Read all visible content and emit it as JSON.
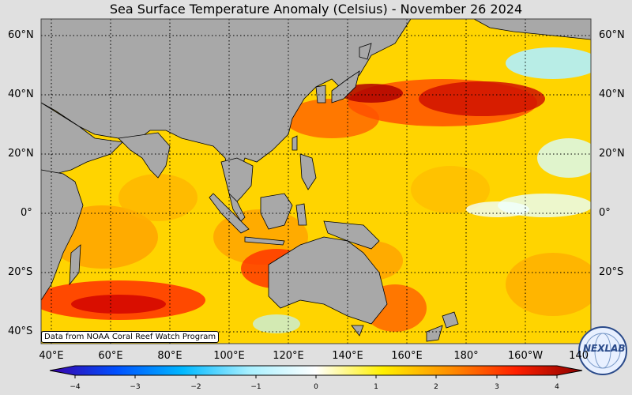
{
  "title": "Sea Surface Temperature Anomaly (Celsius) - November 26 2024",
  "latitude_labels": [
    "60°N",
    "40°N",
    "20°N",
    "0°",
    "20°S",
    "40°S"
  ],
  "longitude_labels": [
    "40°E",
    "60°E",
    "80°E",
    "100°E",
    "120°E",
    "140°E",
    "160°E",
    "180°",
    "160°W",
    "140"
  ],
  "colorbar": {
    "ticks": [
      "−4",
      "−3",
      "−2",
      "−1",
      "0",
      "1",
      "2",
      "3",
      "4"
    ],
    "colors": [
      "#3a00a8",
      "#0050ff",
      "#00b8ff",
      "#a8f0ff",
      "#ffffff",
      "#fff000",
      "#ff9000",
      "#ff2000",
      "#8a0000"
    ]
  },
  "credit": "Data from NOAA Coral Reef Watch Program",
  "logo_text": "NEXLAB",
  "colors": {
    "land": "#a8a8a8",
    "ocean_warm": "#ffd200",
    "ocean_hot": "#ff4000",
    "ocean_cool": "#b0f0ff",
    "background": "#e0e0e0"
  }
}
